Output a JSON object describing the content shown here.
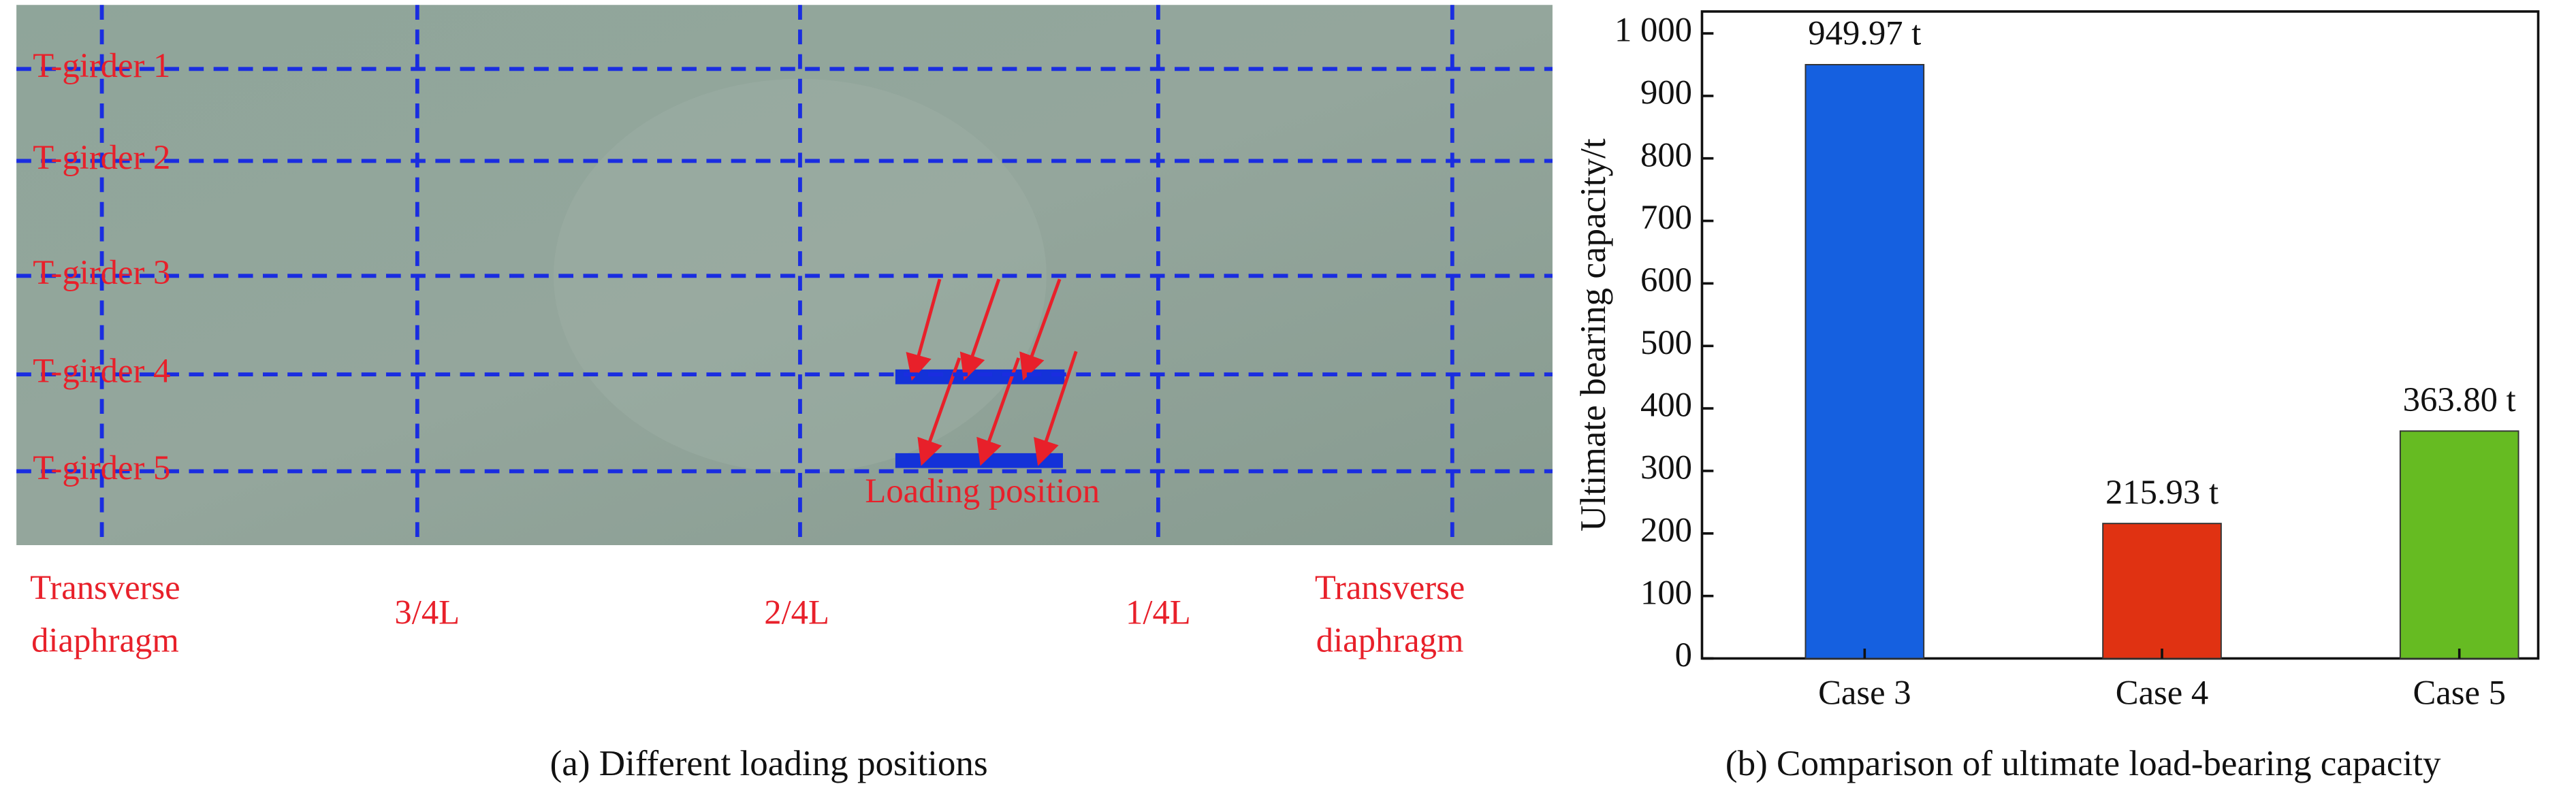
{
  "panel_a": {
    "girders": [
      "T-girder 1",
      "T-girder 2",
      "T-girder 3",
      "T-girder 4",
      "T-girder 5"
    ],
    "sections": [
      [
        "Transverse",
        "diaphragm"
      ],
      [
        "3/4L"
      ],
      [
        "2/4L"
      ],
      [
        "1/4L"
      ],
      [
        "Transverse",
        "diaphragm"
      ]
    ],
    "loading": "Loading position",
    "caption": "(a) Different loading positions"
  },
  "chart_data": {
    "type": "bar",
    "caption": "(b) Comparison of ultimate load-bearing capacity",
    "y_label": "Ultimate bearing capacity/t",
    "categories": [
      "Case 3",
      "Case 4",
      "Case 5"
    ],
    "values": [
      949.97,
      215.93,
      363.8
    ],
    "value_labels": [
      "949.97 t",
      "215.93 t",
      "363.80 t"
    ],
    "colors": [
      "#1560e0",
      "#e03212",
      "#66bb22"
    ],
    "ylim": [
      0,
      1035
    ],
    "yticks": [
      0,
      100,
      200,
      300,
      400,
      500,
      600,
      700,
      800,
      900,
      {
        "value": 1000,
        "label": "1 000"
      }
    ]
  }
}
